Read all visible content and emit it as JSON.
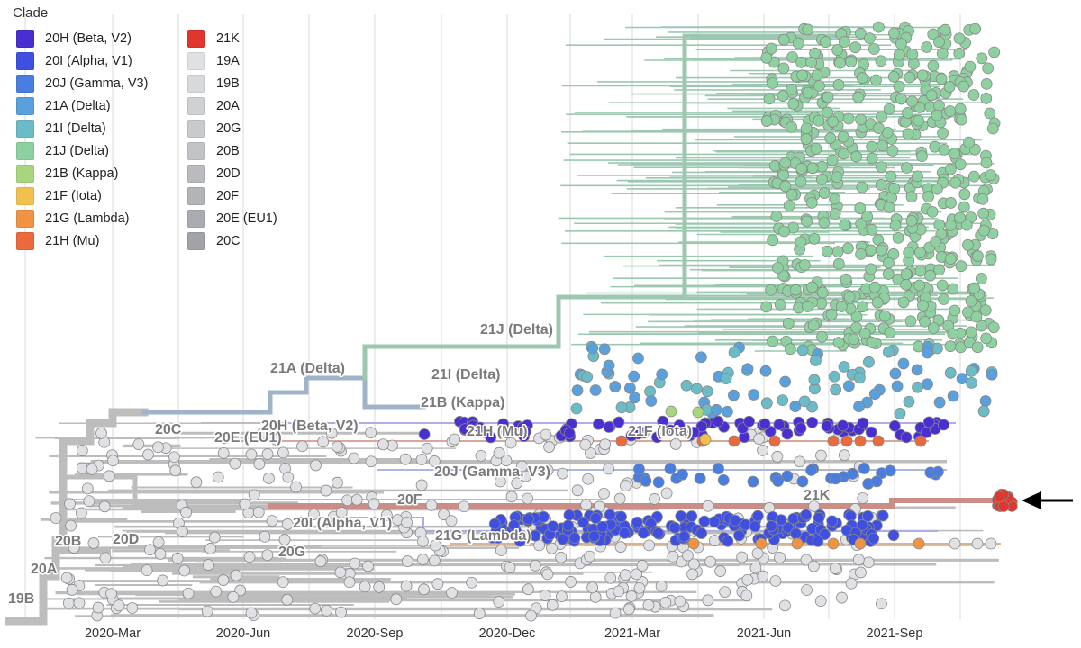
{
  "legend": {
    "title": "Clade",
    "items": [
      {
        "label": "20H (Beta, V2)",
        "color": "#4a2fd0"
      },
      {
        "label": "20I (Alpha, V1)",
        "color": "#3f4fe0"
      },
      {
        "label": "20J (Gamma, V3)",
        "color": "#4a7de0"
      },
      {
        "label": "21A (Delta)",
        "color": "#5aa0dc"
      },
      {
        "label": "21I (Delta)",
        "color": "#6bbcc6"
      },
      {
        "label": "21J (Delta)",
        "color": "#8fd0a0"
      },
      {
        "label": "21B (Kappa)",
        "color": "#a8d67c"
      },
      {
        "label": "21F (Iota)",
        "color": "#f2c04c"
      },
      {
        "label": "21G (Lambda)",
        "color": "#f09443"
      },
      {
        "label": "21H (Mu)",
        "color": "#eb6a3b"
      },
      {
        "label": "21K",
        "color": "#e2352b"
      },
      {
        "label": "19A",
        "color": "#dfe1e4"
      },
      {
        "label": "19B",
        "color": "#d7d9dc"
      },
      {
        "label": "20A",
        "color": "#cfd1d4"
      },
      {
        "label": "20G",
        "color": "#c8cacd"
      },
      {
        "label": "20B",
        "color": "#c1c3c6"
      },
      {
        "label": "20D",
        "color": "#b9bbbf"
      },
      {
        "label": "20F",
        "color": "#b2b4b8"
      },
      {
        "label": "20E (EU1)",
        "color": "#aaacb1"
      },
      {
        "label": "20C",
        "color": "#a1a3a9"
      }
    ]
  },
  "axis": {
    "ticks": [
      "2020-Mar",
      "2020-Jun",
      "2020-Sep",
      "2020-Dec",
      "2021-Mar",
      "2021-Jun",
      "2021-Sep"
    ]
  },
  "clade_labels": [
    {
      "text": "21J (Delta)"
    },
    {
      "text": "21A (Delta)"
    },
    {
      "text": "21I (Delta)"
    },
    {
      "text": "21B (Kappa)"
    },
    {
      "text": "20C"
    },
    {
      "text": "20H (Beta, V2)"
    },
    {
      "text": "20E (EU1)"
    },
    {
      "text": "21H (Mu)"
    },
    {
      "text": "21F (Iota)"
    },
    {
      "text": "20J (Gamma, V3)"
    },
    {
      "text": "20F"
    },
    {
      "text": "21K"
    },
    {
      "text": "20I (Alpha, V1)"
    },
    {
      "text": "21G (Lambda)"
    },
    {
      "text": "20B"
    },
    {
      "text": "20D"
    },
    {
      "text": "20G"
    },
    {
      "text": "20A"
    },
    {
      "text": "19B"
    }
  ],
  "colors": {
    "branch_grey": "#bdbdbd",
    "delta_branch": "#9cc8b0",
    "arrow": "#000000"
  },
  "annotation": {
    "arrow_points_to": "21K"
  }
}
